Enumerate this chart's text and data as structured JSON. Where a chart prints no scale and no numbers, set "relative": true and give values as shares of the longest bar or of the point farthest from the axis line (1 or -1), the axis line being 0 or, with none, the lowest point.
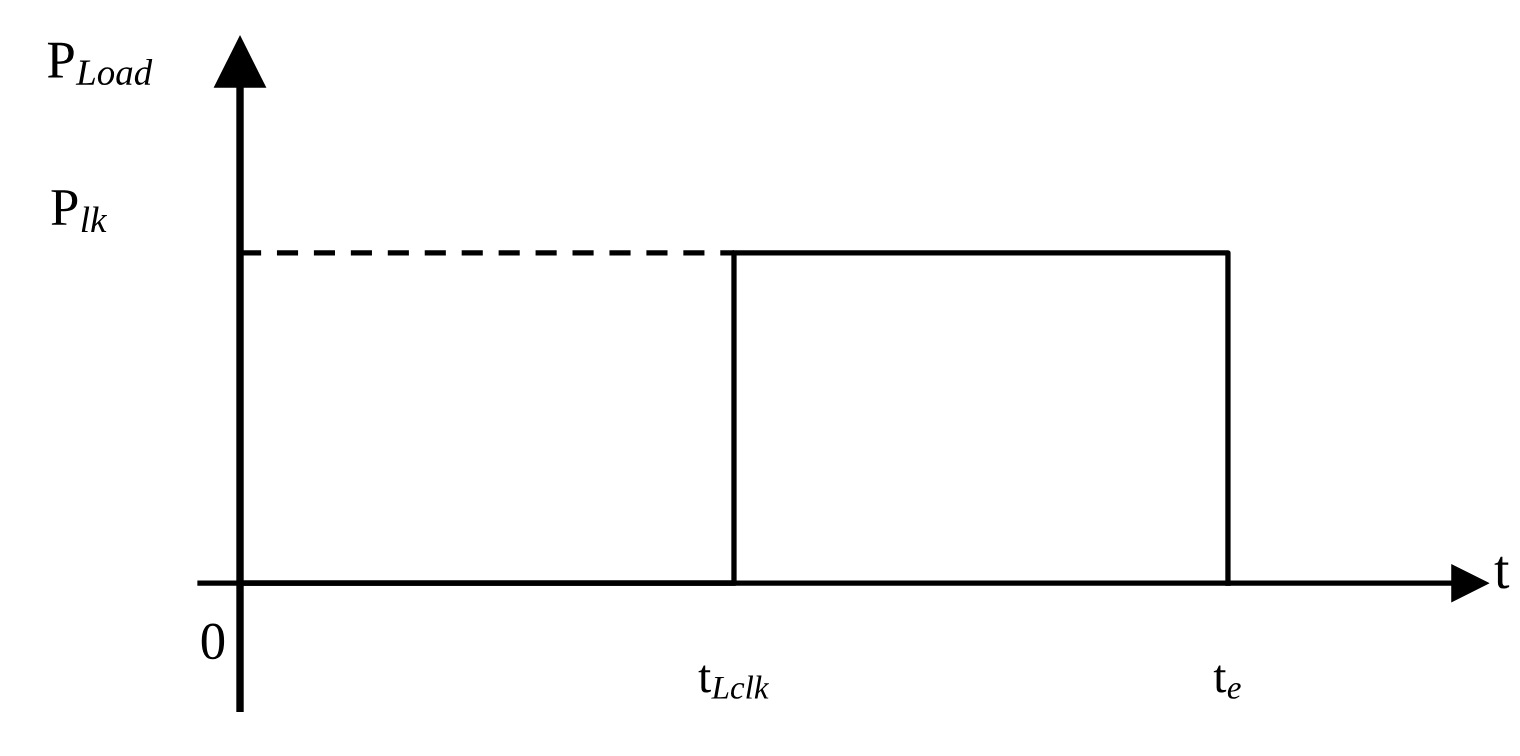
{
  "chart_data": {
    "type": "step",
    "relative": true,
    "xlabel": "t",
    "ylabel": "P$_{Load}$",
    "categories": [
      null,
      "t$_{Lclk}$",
      "t$_{e}$"
    ],
    "annotations": [
      "P$_{lk}$",
      "0"
    ],
    "series": [
      {
        "color": "#000000",
        "values": [
          0,
          1,
          0
        ],
        "line_style": "solid"
      },
      {
        "type": "line",
        "color": "#000000",
        "values": [
          1,
          1,
          null
        ],
        "line_style": "dashed"
      }
    ],
    "grid": false,
    "legend": false,
    "marker": "none"
  }
}
